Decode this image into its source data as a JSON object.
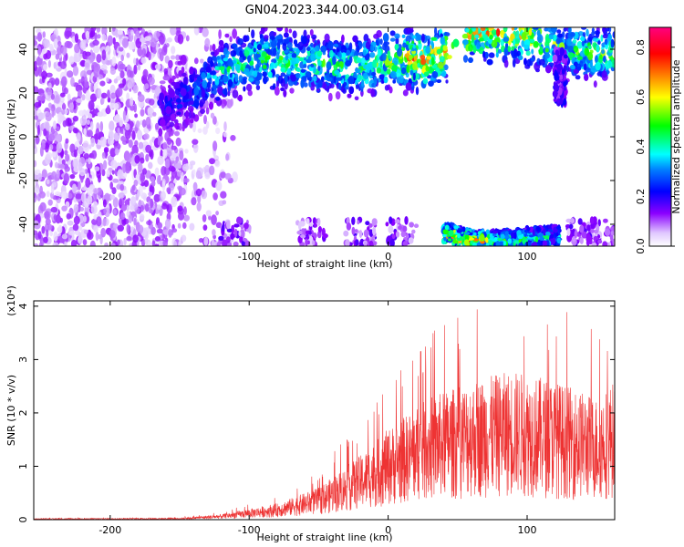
{
  "title": "GN04.2023.344.00.03.G14",
  "chart_data": [
    {
      "type": "heatmap",
      "xlabel": "Height of straight line (km)",
      "ylabel": "Frequency (Hz)",
      "xlim": [
        -255,
        163
      ],
      "ylim": [
        -50,
        50
      ],
      "x_ticks": [
        -200,
        -100,
        0,
        100
      ],
      "y_ticks": [
        -40,
        -20,
        0,
        20,
        40
      ],
      "colorbar": {
        "label": "Normalized spectral amplitude",
        "range": [
          0,
          0.88
        ],
        "ticks": [
          0.0,
          0.2,
          0.4,
          0.6,
          0.8
        ],
        "colormap": [
          "#ffffff",
          "#e9d7ff",
          "#8b00ff",
          "#0000ff",
          "#00ffff",
          "#00ff00",
          "#ffff00",
          "#ff7f00",
          "#ff0000",
          "#ff007f"
        ]
      },
      "description_ridge": [
        {
          "x": -160,
          "y": 13,
          "amp": 0.2
        },
        {
          "x": -140,
          "y": 20,
          "amp": 0.3
        },
        {
          "x": -120,
          "y": 30,
          "amp": 0.5
        },
        {
          "x": -90,
          "y": 36,
          "amp": 0.6
        },
        {
          "x": -50,
          "y": 33,
          "amp": 0.55
        },
        {
          "x": -20,
          "y": 32,
          "amp": 0.55
        },
        {
          "x": 10,
          "y": 36,
          "amp": 0.7
        },
        {
          "x": 25,
          "y": 35,
          "amp": 0.85
        },
        {
          "x": 40,
          "y": 38,
          "amp": 0.75
        },
        {
          "x": 60,
          "y": 48,
          "amp": 0.8
        },
        {
          "x": 90,
          "y": 48,
          "amp": 0.8
        },
        {
          "x": 130,
          "y": 40,
          "amp": 0.55
        },
        {
          "x": 160,
          "y": 38,
          "amp": 0.6
        }
      ],
      "lower_band": [
        {
          "x": 44,
          "y": -45,
          "amp": 0.8
        },
        {
          "x": 60,
          "y": -48,
          "amp": 0.85
        },
        {
          "x": 80,
          "y": -48,
          "amp": 0.6
        },
        {
          "x": 100,
          "y": -47,
          "amp": 0.5
        },
        {
          "x": 115,
          "y": -46,
          "amp": 0.45
        }
      ]
    },
    {
      "type": "line",
      "xlabel": "Height of straight line (km)",
      "ylabel": "SNR (10 * v/v)",
      "y_multiplier": "(x10⁴)",
      "xlim": [
        -255,
        163
      ],
      "ylim": [
        0,
        4.1
      ],
      "x_ticks": [
        -200,
        -100,
        0,
        100
      ],
      "y_ticks": [
        0,
        1,
        2,
        3,
        4
      ],
      "color": "#ee3333",
      "envelope": [
        {
          "x": -255,
          "y": 0.02
        },
        {
          "x": -150,
          "y": 0.03
        },
        {
          "x": -120,
          "y": 0.1
        },
        {
          "x": -80,
          "y": 0.3
        },
        {
          "x": -50,
          "y": 0.6
        },
        {
          "x": -20,
          "y": 1.2
        },
        {
          "x": 0,
          "y": 1.7
        },
        {
          "x": 30,
          "y": 2.3
        },
        {
          "x": 60,
          "y": 2.6
        },
        {
          "x": 90,
          "y": 2.8
        },
        {
          "x": 120,
          "y": 2.6
        },
        {
          "x": 150,
          "y": 2.3
        },
        {
          "x": 163,
          "y": 2.6
        }
      ]
    }
  ]
}
